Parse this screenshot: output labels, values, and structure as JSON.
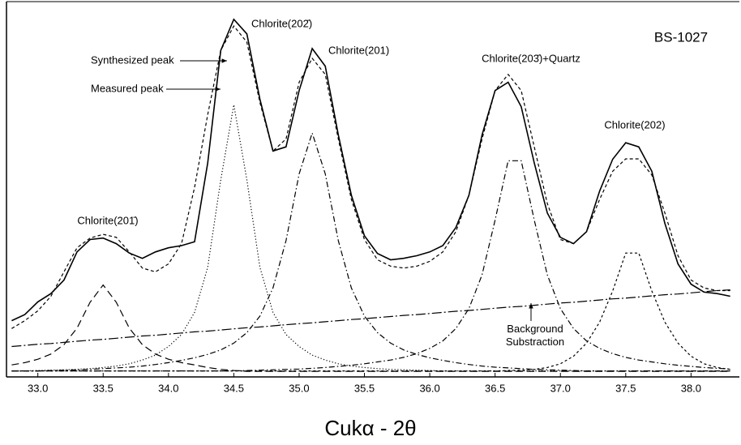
{
  "chart_data": {
    "type": "line",
    "sample": "BS-1027",
    "xlabel": "Cukα - 2θ",
    "annotations": [
      "Chlorite(201̄)",
      "Chlorite(202̄)",
      "Chlorite(201)",
      "Chlorite(203̄)+Quartz",
      "Chlorite(202)"
    ],
    "xlim": [
      32.76,
      38.37
    ],
    "ylim": [
      0,
      100
    ],
    "xticks": [
      {
        "value": 33,
        "label": "33.0"
      },
      {
        "value": 33.5,
        "label": "33.5"
      },
      {
        "value": 34,
        "label": "34.0"
      },
      {
        "value": 34.5,
        "label": "34.5"
      },
      {
        "value": 35,
        "label": "35.0"
      },
      {
        "value": 35.5,
        "label": "35.5"
      },
      {
        "value": 36,
        "label": "36.0"
      },
      {
        "value": 36.5,
        "label": "36.5"
      },
      {
        "value": 37,
        "label": "37.0"
      },
      {
        "value": 37.5,
        "label": "37.5"
      },
      {
        "value": 38,
        "label": "38.0"
      }
    ],
    "x": [
      32.8,
      32.9,
      33.0,
      33.1,
      33.2,
      33.3,
      33.4,
      33.5,
      33.6,
      33.7,
      33.8,
      33.9,
      34.0,
      34.1,
      34.2,
      34.3,
      34.4,
      34.5,
      34.6,
      34.7,
      34.8,
      34.9,
      35.0,
      35.1,
      35.2,
      35.3,
      35.4,
      35.5,
      35.6,
      35.7,
      35.8,
      35.9,
      36.0,
      36.1,
      36.2,
      36.3,
      36.4,
      36.5,
      36.6,
      36.7,
      36.8,
      36.9,
      37.0,
      37.1,
      37.2,
      37.3,
      37.4,
      37.5,
      37.6,
      37.7,
      37.8,
      37.9,
      38.0,
      38.1,
      38.2,
      38.3
    ],
    "series": [
      {
        "name": "Measured peak",
        "color": "#000000",
        "style": "solid",
        "values": [
          15,
          16.6,
          20,
          22.2,
          25.8,
          33.3,
          36.6,
          37,
          35.5,
          33,
          31.6,
          33.3,
          34.4,
          35,
          36,
          57,
          87,
          95.3,
          91.4,
          74,
          60.2,
          61.3,
          76.3,
          87.5,
          82.8,
          64.5,
          48.4,
          37.6,
          32.9,
          31.2,
          31.6,
          32.3,
          33.3,
          35,
          39.8,
          48.4,
          64.5,
          76.3,
          78.5,
          72,
          57,
          43.7,
          37.2,
          35.5,
          38.7,
          49.5,
          58,
          62.4,
          61.3,
          54.8,
          40.9,
          30.1,
          24.7,
          22.6,
          22.2,
          21.5
        ]
      },
      {
        "name": "Synthesized peak",
        "color": "#000000",
        "style": "dashed",
        "values": [
          12.9,
          15,
          17.6,
          21.5,
          28,
          34.4,
          37,
          38,
          37.2,
          33.3,
          29,
          28,
          30.1,
          35.5,
          50.5,
          69.9,
          87,
          93.5,
          89.2,
          73.1,
          60.2,
          63.4,
          78.5,
          84.9,
          80.6,
          63.4,
          47.3,
          36.6,
          31.2,
          29.5,
          29,
          29.5,
          30.8,
          33.3,
          38.7,
          48.4,
          63.4,
          76.3,
          80.6,
          76.3,
          61.3,
          46.2,
          36.6,
          35.5,
          38.7,
          47.3,
          54.8,
          58.1,
          58.1,
          53.8,
          43.7,
          32.3,
          25.8,
          23.7,
          23,
          23
        ]
      },
      {
        "name": "Background Substraction",
        "color": "#000000",
        "style": "dashdotlong",
        "values": [
          8.1,
          8.4,
          8.7,
          8.9,
          9.2,
          9.5,
          9.8,
          10,
          10.3,
          10.6,
          10.9,
          11.1,
          11.4,
          11.7,
          12,
          12.2,
          12.5,
          12.8,
          13.1,
          13.3,
          13.6,
          13.9,
          14.2,
          14.4,
          14.7,
          15,
          15.3,
          15.5,
          15.8,
          16.1,
          16.4,
          16.6,
          16.9,
          17.2,
          17.5,
          17.7,
          18,
          18.3,
          18.6,
          18.8,
          19.1,
          19.4,
          19.7,
          19.9,
          20.2,
          20.5,
          20.8,
          21,
          21.3,
          21.6,
          21.9,
          22.1,
          22.4,
          22.7,
          23,
          23.2
        ]
      },
      {
        "color": "#000000",
        "style": "longdash",
        "values": [
          3.2,
          3.8,
          4.7,
          6.1,
          8.6,
          13,
          19.9,
          24.5,
          19.9,
          13,
          8.6,
          6.1,
          4.7,
          3.8,
          3.2,
          2.5,
          2,
          1.7,
          1.5,
          1.5,
          1.5,
          1.5,
          1.5,
          1.5,
          1.5,
          1.5,
          1.5,
          1.5,
          1.5,
          1.5,
          1.5,
          1.5,
          1.5,
          1.5,
          1.5,
          1.5,
          1.5,
          1.5,
          1.5,
          1.5,
          1.5,
          1.5,
          1.5,
          1.5,
          1.5,
          1.5,
          1.5,
          1.5,
          1.5,
          1.5,
          1.5,
          1.5,
          1.5,
          1.5,
          1.5,
          1.5
        ]
      },
      {
        "color": "#000000",
        "style": "dotted",
        "values": [
          1.6,
          1.6,
          1.7,
          1.8,
          1.9,
          2,
          2.2,
          2.5,
          2.9,
          3.5,
          4.5,
          5.8,
          8.1,
          11.3,
          17.2,
          29.2,
          52.5,
          72.5,
          52.5,
          29.2,
          17.2,
          11.3,
          8.1,
          5.8,
          4.5,
          3.5,
          2.9,
          2.5,
          2.2,
          2,
          1.9,
          1.8,
          1.7,
          1.6,
          1.6,
          1.6,
          1.6,
          1.6,
          1.6,
          1.6,
          1.6,
          1.6,
          1.6,
          1.6,
          1.6,
          1.6,
          1.6,
          1.6,
          1.6,
          1.6,
          1.6,
          1.6,
          1.6,
          1.6,
          1.6,
          1.6
        ]
      },
      {
        "color": "#000000",
        "style": "dashdot",
        "values": [
          1.6,
          1.6,
          1.6,
          1.7,
          1.8,
          1.9,
          2,
          2.2,
          2.4,
          2.6,
          2.9,
          3.3,
          3.8,
          4.4,
          5.1,
          6,
          7.2,
          9,
          11.8,
          16.2,
          23.7,
          36.3,
          54.1,
          65,
          54.1,
          36.3,
          23.7,
          16.2,
          11.8,
          9,
          7.2,
          6,
          5.1,
          4.4,
          3.8,
          3.3,
          2.9,
          2.6,
          2.4,
          2.2,
          2,
          1.9,
          1.8,
          1.7,
          1.6,
          1.6,
          1.6,
          1.6,
          1.6,
          1.6,
          1.6,
          1.6,
          1.6,
          1.6,
          1.6,
          1.6
        ]
      },
      {
        "color": "#000000",
        "style": "dashdot",
        "values": [
          1.6,
          1.6,
          1.6,
          1.6,
          1.6,
          1.6,
          1.6,
          1.6,
          1.6,
          1.6,
          1.6,
          1.6,
          1.6,
          1.6,
          1.6,
          1.6,
          1.6,
          1.6,
          1.7,
          1.8,
          1.9,
          2,
          2.1,
          2.3,
          2.5,
          2.8,
          3.1,
          3.5,
          4,
          4.5,
          5.2,
          6.2,
          7.6,
          9.6,
          12.9,
          18.2,
          27.2,
          41.8,
          57.6,
          57.6,
          41.8,
          27.2,
          18.2,
          12.9,
          9.6,
          7.6,
          6.2,
          5.2,
          4.5,
          4,
          3.5,
          3.1,
          2.8,
          2.5,
          2.3,
          2.1
        ]
      },
      {
        "color": "#000000",
        "style": "shortdash",
        "values": [
          1.6,
          1.6,
          1.6,
          1.6,
          1.6,
          1.6,
          1.6,
          1.6,
          1.6,
          1.6,
          1.6,
          1.6,
          1.6,
          1.6,
          1.6,
          1.6,
          1.6,
          1.6,
          1.6,
          1.6,
          1.6,
          1.6,
          1.6,
          1.6,
          1.6,
          1.6,
          1.6,
          1.6,
          1.6,
          1.6,
          1.6,
          1.6,
          1.6,
          1.6,
          1.6,
          1.6,
          1.6,
          1.6,
          1.7,
          1.8,
          2,
          2.5,
          3.5,
          5.5,
          9,
          14.6,
          22.9,
          33,
          33,
          22.9,
          14.6,
          9,
          5.5,
          3.5,
          2.5,
          2
        ]
      }
    ]
  }
}
